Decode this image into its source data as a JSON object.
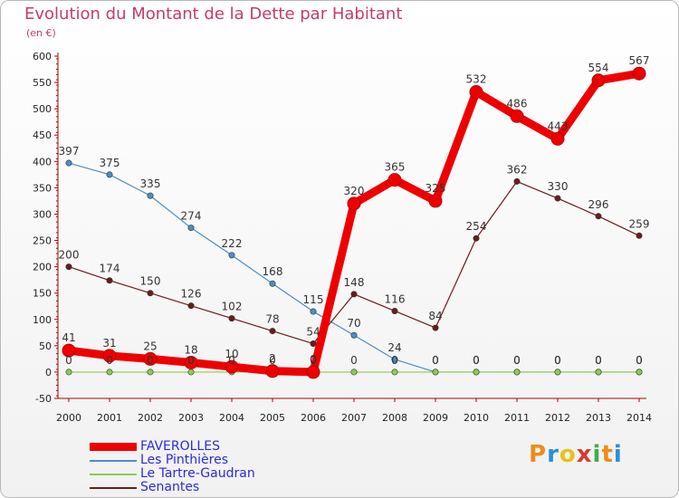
{
  "chart_data": {
    "type": "line",
    "title": "Evolution du Montant de la Dette par Habitant",
    "subtitle": "(en €)",
    "x": [
      "2000",
      "2001",
      "2002",
      "2003",
      "2004",
      "2005",
      "2006",
      "2007",
      "2008",
      "2009",
      "2010",
      "2011",
      "2012",
      "2013",
      "2014"
    ],
    "ylim": [
      -50,
      600
    ],
    "yticks": [
      -50,
      0,
      50,
      100,
      150,
      200,
      250,
      300,
      350,
      400,
      450,
      500,
      550,
      600
    ],
    "grid": false,
    "legend_position": "bottom-left",
    "series": [
      {
        "name": "FAVEROLLES",
        "color": "#ee0000",
        "emphasis": true,
        "values": [
          41,
          31,
          25,
          18,
          10,
          2,
          0,
          320,
          365,
          325,
          532,
          486,
          443,
          554,
          567
        ],
        "labels": [
          "41",
          "31",
          "25",
          "18",
          "10",
          "2",
          "0",
          "320",
          "365",
          "325",
          "532",
          "486",
          "443",
          "554",
          "567"
        ]
      },
      {
        "name": "Les Pinthières",
        "color": "#4a8ec8",
        "emphasis": false,
        "values": [
          397,
          375,
          335,
          274,
          222,
          168,
          115,
          70,
          24,
          0,
          0,
          0,
          0,
          0,
          0
        ],
        "labels": [
          "397",
          "375",
          "335",
          "274",
          "222",
          "168",
          "115",
          "70",
          "24",
          "0",
          "0",
          "0",
          "0",
          "0",
          "0"
        ]
      },
      {
        "name": "Le Tartre-Gaudran",
        "color": "#8ccc50",
        "emphasis": false,
        "values": [
          0,
          0,
          0,
          0,
          0,
          0,
          0,
          0,
          0,
          0,
          0,
          0,
          0,
          0,
          0
        ],
        "labels": [
          "0",
          "0",
          "0",
          "0",
          "0",
          "0",
          "0",
          "0",
          "0",
          "0",
          "0",
          "0",
          "0",
          "0",
          "0"
        ]
      },
      {
        "name": "Senantes",
        "color": "#6e1a1a",
        "emphasis": false,
        "values": [
          200,
          174,
          150,
          126,
          102,
          78,
          54,
          148,
          116,
          84,
          254,
          362,
          330,
          296,
          259
        ],
        "labels": [
          "200",
          "174",
          "150",
          "126",
          "102",
          "78",
          "54",
          "148",
          "116",
          "84",
          "254",
          "362",
          "330",
          "296",
          "259"
        ]
      }
    ]
  },
  "logo": {
    "text": "Proxiti",
    "colors": [
      "#f08a1c",
      "#2a8fd6",
      "#e8c21a",
      "#d63a2e",
      "#3fae49",
      "#f08a1c",
      "#2a8fd6"
    ]
  }
}
